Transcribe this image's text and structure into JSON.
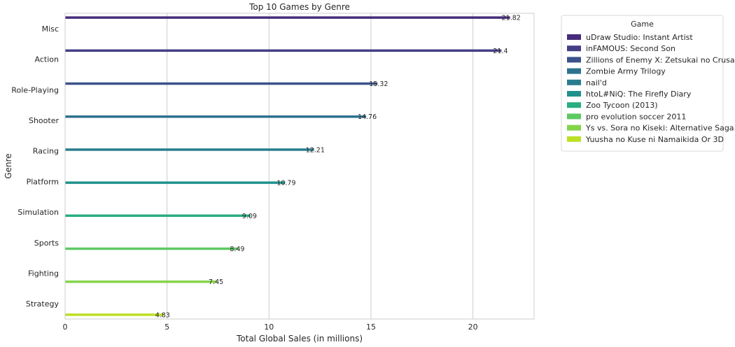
{
  "chart_data": {
    "type": "bar",
    "orientation": "horizontal",
    "title": "Top 10 Games by Genre",
    "xlabel": "Total Global Sales (in millions)",
    "ylabel": "Genre",
    "xlim": [
      0,
      23
    ],
    "xticks": [
      0,
      5,
      10,
      15,
      20
    ],
    "grid": "vertical",
    "legend": {
      "title": "Game",
      "placement": "outside-right"
    },
    "categories": [
      "Misc",
      "Action",
      "Role-Playing",
      "Shooter",
      "Racing",
      "Platform",
      "Simulation",
      "Sports",
      "Fighting",
      "Strategy"
    ],
    "series": [
      {
        "name": "uDraw Studio: Instant Artist",
        "color": "#472c7a",
        "category": "Misc",
        "value": 21.82,
        "label": "21.82"
      },
      {
        "name": "inFAMOUS: Second Son",
        "color": "#433e85",
        "category": "Action",
        "value": 21.4,
        "label": "21.4"
      },
      {
        "name": "Zillions of Enemy X: Zetsukai no Crusade",
        "color": "#3b528b",
        "category": "Role-Playing",
        "value": 15.32,
        "label": "15.32"
      },
      {
        "name": "Zombie Army Trilogy",
        "color": "#2c728e",
        "category": "Shooter",
        "value": 14.76,
        "label": "14.76"
      },
      {
        "name": "nail'd",
        "color": "#287c8e",
        "category": "Racing",
        "value": 12.21,
        "label": "12.21"
      },
      {
        "name": "htoL#NiQ: The Firefly Diary",
        "color": "#21918c",
        "category": "Platform",
        "value": 10.79,
        "label": "10.79"
      },
      {
        "name": "Zoo Tycoon (2013)",
        "color": "#28ae80",
        "category": "Simulation",
        "value": 9.09,
        "label": "9.09"
      },
      {
        "name": "pro evolution soccer 2011",
        "color": "#5ec962",
        "category": "Sports",
        "value": 8.49,
        "label": "8.49"
      },
      {
        "name": "Ys vs. Sora no Kiseki: Alternative Saga",
        "color": "#84d44b",
        "category": "Fighting",
        "value": 7.45,
        "label": "7.45"
      },
      {
        "name": "Yuusha no Kuse ni Namaikida Or 3D",
        "color": "#bddf26",
        "category": "Strategy",
        "value": 4.83,
        "label": "4.83"
      }
    ]
  }
}
